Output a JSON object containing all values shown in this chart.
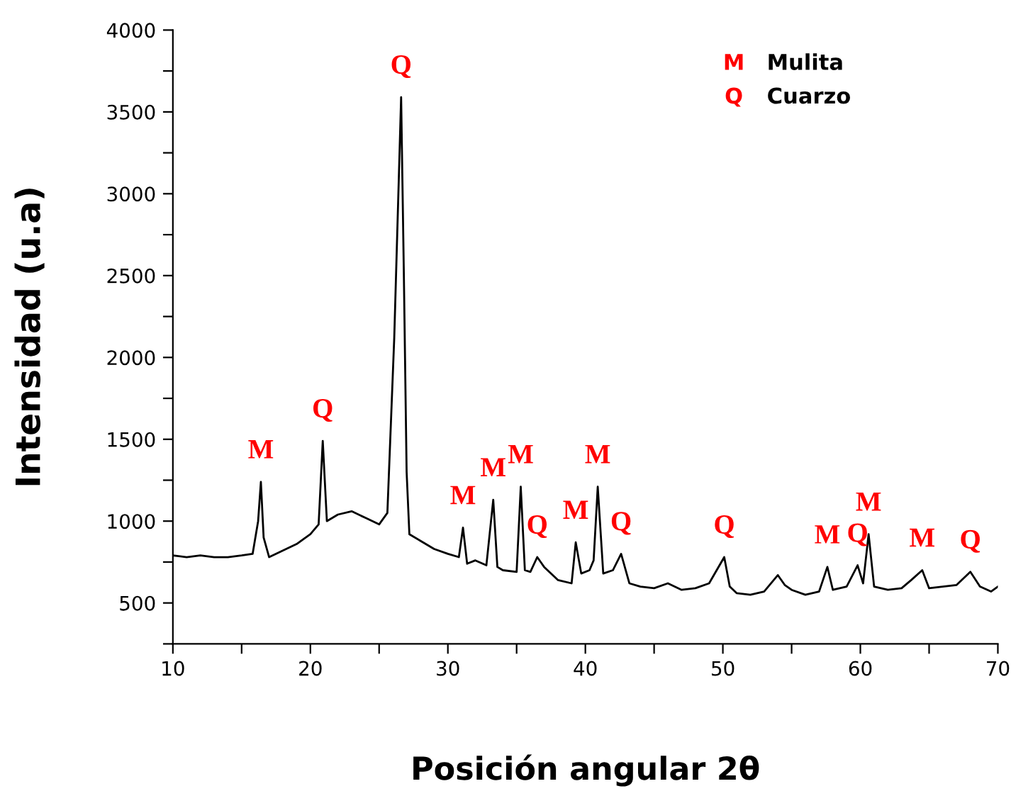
{
  "chart_data": {
    "type": "line",
    "xlabel": "Posición angular 2θ",
    "ylabel": "Intensidad (u.a)",
    "xlim": [
      10,
      70
    ],
    "ylim": [
      250,
      4000
    ],
    "xticks": [
      10,
      {
        "value": 15,
        "label": null
      },
      20,
      {
        "value": 25,
        "label": null
      },
      30,
      {
        "value": 35,
        "label": null
      },
      40,
      {
        "value": 45,
        "label": null
      },
      50,
      {
        "value": 55,
        "label": null
      },
      60,
      {
        "value": 65,
        "label": null
      },
      70
    ],
    "yticks": [
      {
        "value": 250,
        "label": null
      },
      500,
      {
        "value": 750,
        "label": null
      },
      1000,
      {
        "value": 1250,
        "label": null
      },
      1500,
      {
        "value": 1750,
        "label": null
      },
      2000,
      {
        "value": 2250,
        "label": null
      },
      2500,
      {
        "value": 2750,
        "label": null
      },
      3000,
      {
        "value": 3250,
        "label": null
      },
      3500,
      {
        "value": 3750,
        "label": null
      },
      4000
    ],
    "grid": false,
    "legend": false,
    "marker": "none",
    "line_style": "solid",
    "series": [
      {
        "color": "#000000",
        "x": [
          10,
          11,
          12,
          13,
          14,
          15,
          15.8,
          16.2,
          16.4,
          16.6,
          17,
          18,
          19,
          20,
          20.6,
          20.9,
          21.2,
          22,
          23,
          24,
          25,
          25.6,
          26.1,
          26.4,
          26.6,
          26.8,
          27.0,
          27.2,
          28,
          29,
          30,
          30.8,
          31.1,
          31.4,
          32,
          32.8,
          33.3,
          33.6,
          34,
          35,
          35.3,
          35.6,
          36,
          36.5,
          37,
          38,
          39,
          39.3,
          39.7,
          40.3,
          40.6,
          40.9,
          41.3,
          42,
          42.6,
          43.2,
          44,
          45,
          46,
          47,
          48,
          49,
          50.1,
          50.5,
          51,
          52,
          53,
          54,
          54.5,
          55,
          56,
          57,
          57.6,
          58,
          59,
          59.8,
          60.2,
          60.6,
          61,
          62,
          63,
          63.7,
          64.5,
          65,
          66,
          67,
          68,
          68.7,
          69.5,
          70
        ],
        "values": [
          790,
          780,
          790,
          780,
          780,
          790,
          800,
          1000,
          1240,
          900,
          780,
          820,
          860,
          920,
          980,
          1490,
          1000,
          1040,
          1060,
          1020,
          980,
          1050,
          2120,
          3000,
          3590,
          2500,
          1300,
          920,
          880,
          830,
          800,
          780,
          960,
          740,
          760,
          730,
          1130,
          720,
          700,
          690,
          1210,
          700,
          690,
          780,
          720,
          640,
          620,
          870,
          680,
          700,
          760,
          1210,
          680,
          700,
          800,
          620,
          600,
          590,
          620,
          580,
          590,
          620,
          780,
          600,
          560,
          550,
          570,
          670,
          610,
          580,
          550,
          570,
          720,
          580,
          600,
          730,
          620,
          920,
          600,
          580,
          590,
          640,
          700,
          590,
          600,
          610,
          690,
          600,
          570,
          600
        ]
      }
    ],
    "annotations": [
      {
        "text": "M",
        "x": 16.4,
        "y": 1240
      },
      {
        "text": "Q",
        "x": 20.9,
        "y": 1490
      },
      {
        "text": "Q",
        "x": 26.6,
        "y": 3590
      },
      {
        "text": "M",
        "x": 31.1,
        "y": 960
      },
      {
        "text": "M",
        "x": 33.3,
        "y": 1130
      },
      {
        "text": "M",
        "x": 35.3,
        "y": 1210
      },
      {
        "text": "Q",
        "x": 36.5,
        "y": 780
      },
      {
        "text": "M",
        "x": 39.3,
        "y": 870
      },
      {
        "text": "M",
        "x": 40.9,
        "y": 1210
      },
      {
        "text": "Q",
        "x": 42.6,
        "y": 800
      },
      {
        "text": "Q",
        "x": 50.1,
        "y": 780
      },
      {
        "text": "M",
        "x": 57.6,
        "y": 720
      },
      {
        "text": "Q",
        "x": 59.8,
        "y": 730
      },
      {
        "text": "M",
        "x": 60.6,
        "y": 920
      },
      {
        "text": "M",
        "x": 64.5,
        "y": 700
      },
      {
        "text": "Q",
        "x": 68.0,
        "y": 690
      },
      "M",
      "Mulita",
      "Q",
      "Cuarzo"
    ]
  }
}
